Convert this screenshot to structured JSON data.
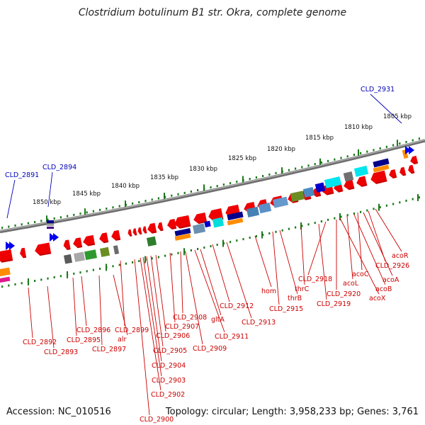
{
  "map": {
    "title": "Clostridium botulinum B1 str. Okra, complete genome",
    "accession": "Accession: NC_010516",
    "summary": "Topology: circular; Length: 3,958,233 bp; Genes: 3,761"
  },
  "colors": {
    "backbone": "#808080",
    "tick": "#1a7a1a",
    "red_gene": "#ee0000",
    "red_label": "#cc0000",
    "blue_label": "#0000bb"
  },
  "kbp_labels": [
    {
      "key": "k1850",
      "text": "1850 kbp"
    },
    {
      "key": "k1845",
      "text": "1845 kbp"
    },
    {
      "key": "k1840",
      "text": "1840 kbp"
    },
    {
      "key": "k1835",
      "text": "1835 kbp"
    },
    {
      "key": "k1830",
      "text": "1830 kbp"
    },
    {
      "key": "k1825",
      "text": "1825 kbp"
    },
    {
      "key": "k1820",
      "text": "1820 kbp"
    },
    {
      "key": "k1815",
      "text": "1815 kbp"
    },
    {
      "key": "k1810",
      "text": "1810 kbp"
    },
    {
      "key": "k1805",
      "text": "1805 kbp"
    }
  ],
  "gene_labels": [
    {
      "key": "CLD_2931",
      "text": "CLD_2931",
      "color": "blue"
    },
    {
      "key": "CLD_2891",
      "text": "CLD_2891",
      "color": "blue"
    },
    {
      "key": "CLD_2894",
      "text": "CLD_2894",
      "color": "blue"
    },
    {
      "key": "acoR",
      "text": "acoR",
      "color": "red"
    },
    {
      "key": "CLD_2926",
      "text": "CLD_2926",
      "color": "red"
    },
    {
      "key": "acoC",
      "text": "acoC",
      "color": "red"
    },
    {
      "key": "acoA",
      "text": "acoA",
      "color": "red"
    },
    {
      "key": "acoL",
      "text": "acoL",
      "color": "red"
    },
    {
      "key": "acoB",
      "text": "acoB",
      "color": "red"
    },
    {
      "key": "CLD_2918",
      "text": "CLD_2918",
      "color": "red"
    },
    {
      "key": "CLD_2920",
      "text": "CLD_2920",
      "color": "red"
    },
    {
      "key": "acoX",
      "text": "acoX",
      "color": "red"
    },
    {
      "key": "thrC",
      "text": "thrC",
      "color": "red"
    },
    {
      "key": "CLD_2919",
      "text": "CLD_2919",
      "color": "red"
    },
    {
      "key": "hom",
      "text": "hom",
      "color": "red"
    },
    {
      "key": "thrB",
      "text": "thrB",
      "color": "red"
    },
    {
      "key": "CLD_2915",
      "text": "CLD_2915",
      "color": "red"
    },
    {
      "key": "CLD_2912",
      "text": "CLD_2912",
      "color": "red"
    },
    {
      "key": "CLD_2913",
      "text": "CLD_2913",
      "color": "red"
    },
    {
      "key": "CLD_2908",
      "text": "CLD_2908",
      "color": "red"
    },
    {
      "key": "gltA",
      "text": "gltA",
      "color": "red"
    },
    {
      "key": "CLD_2907",
      "text": "CLD_2907",
      "color": "red"
    },
    {
      "key": "CLD_2911",
      "text": "CLD_2911",
      "color": "red"
    },
    {
      "key": "CLD_2906",
      "text": "CLD_2906",
      "color": "red"
    },
    {
      "key": "CLD_2909",
      "text": "CLD_2909",
      "color": "red"
    },
    {
      "key": "CLD_2905",
      "text": "CLD_2905",
      "color": "red"
    },
    {
      "key": "CLD_2904",
      "text": "CLD_2904",
      "color": "red"
    },
    {
      "key": "CLD_2903",
      "text": "CLD_2903",
      "color": "red"
    },
    {
      "key": "CLD_2902",
      "text": "CLD_2902",
      "color": "red"
    },
    {
      "key": "CLD_2900",
      "text": "CLD_2900",
      "color": "red"
    },
    {
      "key": "CLD_2896",
      "text": "CLD_2896",
      "color": "red"
    },
    {
      "key": "CLD_2899",
      "text": "CLD_2899",
      "color": "red"
    },
    {
      "key": "CLD_2895",
      "text": "CLD_2895",
      "color": "red"
    },
    {
      "key": "alr",
      "text": "alr",
      "color": "red"
    },
    {
      "key": "CLD_2897",
      "text": "CLD_2897",
      "color": "red"
    },
    {
      "key": "CLD_2892",
      "text": "CLD_2892",
      "color": "red"
    },
    {
      "key": "CLD_2893",
      "text": "CLD_2893",
      "color": "red"
    }
  ]
}
